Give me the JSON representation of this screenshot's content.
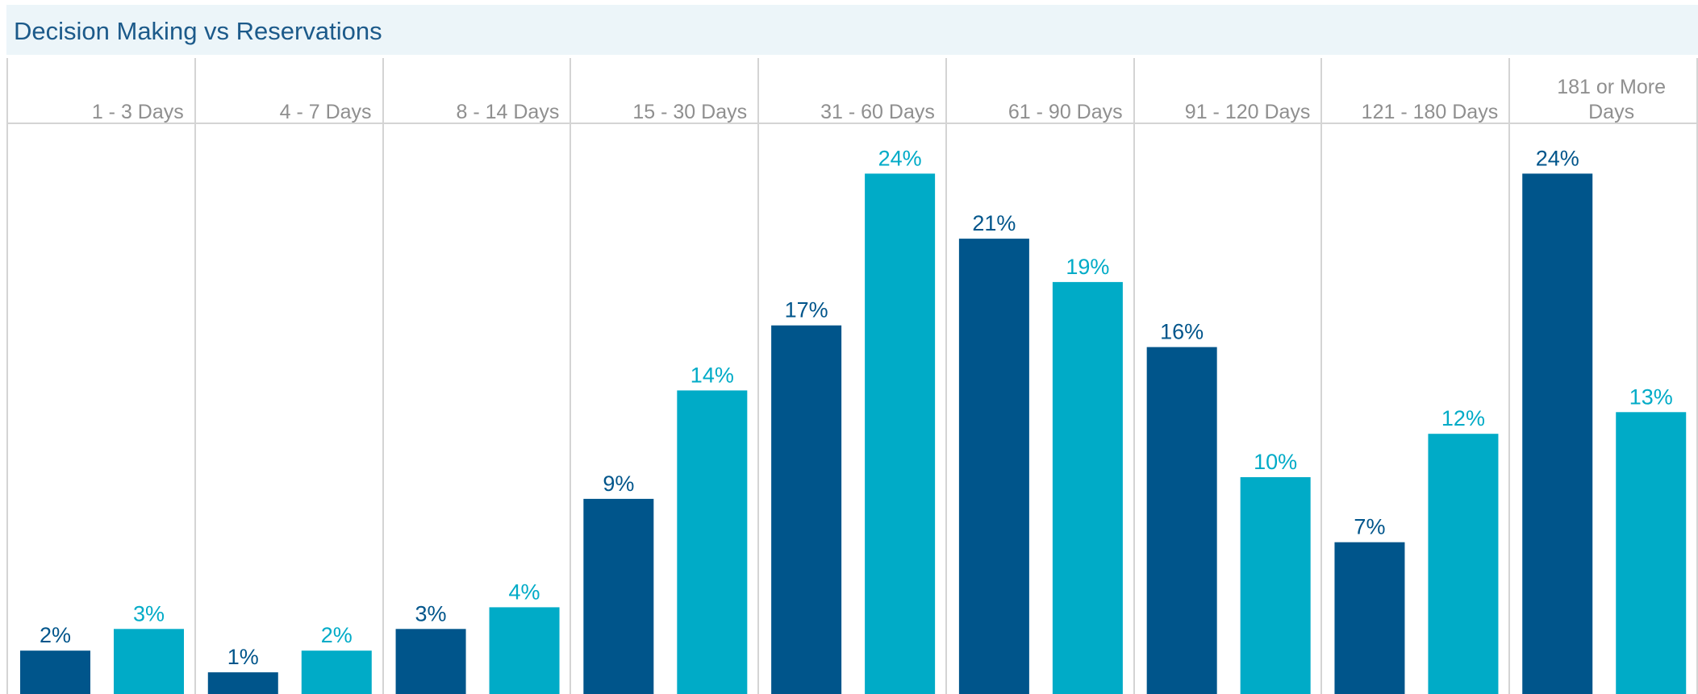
{
  "title": "Decision Making vs Reservations",
  "colors": {
    "series_dark": "#00558b",
    "series_light": "#00abc7",
    "grid": "#d4d4d4",
    "title_bg": "#ecf5f9",
    "title_text": "#1c5a8a",
    "category_text": "#8f8f8f"
  },
  "chart_data": {
    "type": "bar",
    "title": "Decision Making vs Reservations",
    "categories": [
      [
        "1 - 3 Days"
      ],
      [
        "4 - 7 Days"
      ],
      [
        "8 - 14 Days"
      ],
      [
        "15 - 30 Days"
      ],
      [
        "31 - 60 Days"
      ],
      [
        "61 - 90 Days"
      ],
      [
        "91 - 120 Days"
      ],
      [
        "121 - 180 Days"
      ],
      [
        "181 or More",
        "Days"
      ]
    ],
    "series": [
      {
        "values": [
          2,
          1,
          3,
          9,
          17,
          21,
          16,
          7,
          24
        ],
        "labels": [
          "2%",
          "1%",
          "3%",
          "9%",
          "17%",
          "21%",
          "16%",
          "7%",
          "24%"
        ]
      },
      {
        "values": [
          3,
          2,
          4,
          14,
          24,
          19,
          10,
          12,
          13
        ],
        "labels": [
          "3%",
          "2%",
          "4%",
          "14%",
          "24%",
          "19%",
          "10%",
          "12%",
          "13%"
        ]
      }
    ],
    "value_format": "percent",
    "legend": "none",
    "grid": "vertical separators between categories"
  }
}
